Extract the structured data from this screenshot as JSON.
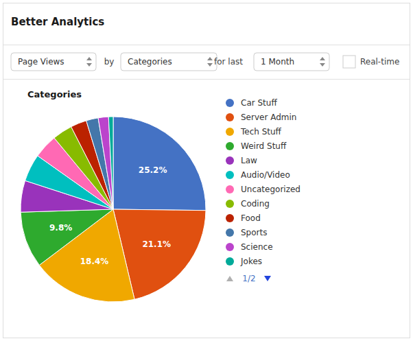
{
  "chart_data": {
    "type": "pie",
    "title": "Better Analytics",
    "subtitle": "Categories",
    "categories": [
      "Car Stuff",
      "Server Admin",
      "Tech Stuff",
      "Weird Stuff",
      "Law",
      "Audio/Video",
      "Uncategorized",
      "Coding",
      "Food",
      "Sports",
      "Science",
      "Jokes"
    ],
    "values": [
      25.2,
      21.1,
      18.4,
      9.8,
      5.5,
      4.8,
      4.2,
      3.5,
      2.8,
      2.1,
      1.8,
      0.8
    ],
    "value_labels": [
      "25.2%",
      "21.1%",
      "18.4%",
      "9.8%",
      null,
      null,
      null,
      null,
      null,
      null,
      null,
      null
    ],
    "data_labels": true,
    "colors": [
      "#4472C4",
      "#E05010",
      "#F0A800",
      "#2EAA2E",
      "#9933BB",
      "#00BFBF",
      "#FF69B4",
      "#88BB00",
      "#BB2200",
      "#4477AA",
      "#BB44CC",
      "#00AA99"
    ],
    "legend": "right",
    "annotations": [
      "Page Views",
      "by",
      "Categories",
      "for last",
      "1 Month",
      "Real-time",
      "1/2"
    ]
  }
}
